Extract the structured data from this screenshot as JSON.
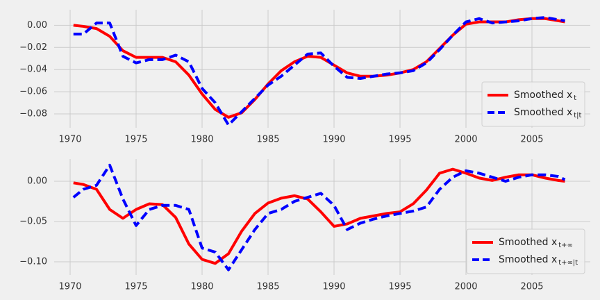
{
  "chart_data": [
    {
      "type": "line",
      "grid": true,
      "legend": "lower right",
      "x": [
        1970.25,
        1971,
        1972,
        1973,
        1974,
        1975,
        1976,
        1977,
        1978,
        1979,
        1980,
        1981,
        1982,
        1983,
        1984,
        1985,
        1986,
        1987,
        1988,
        1989,
        1990,
        1991,
        1992,
        1993,
        1994,
        1995,
        1996,
        1997,
        1998,
        1999,
        2000,
        2001,
        2002,
        2003,
        2004,
        2005,
        2006,
        2007,
        2007.5
      ],
      "xlim": [
        1968.79,
        2009.42
      ],
      "xticks": [
        1970,
        1975,
        1980,
        1985,
        1990,
        1995,
        2000,
        2005
      ],
      "ylim": [
        -0.0925,
        0.014
      ],
      "yticks": [
        {
          "value": 0,
          "label": "0.00"
        },
        {
          "value": -0.02,
          "label": "−0.02"
        },
        {
          "value": -0.04,
          "label": "−0.04"
        },
        {
          "value": -0.06,
          "label": "−0.06"
        },
        {
          "value": -0.08,
          "label": "−0.08"
        }
      ],
      "series": [
        {
          "name": "Smoothed x",
          "subscript": "t",
          "color": "#ff0000",
          "linestyle": "solid",
          "values": [
            0.0,
            -0.001,
            -0.003,
            -0.01,
            -0.023,
            -0.029,
            -0.029,
            -0.029,
            -0.033,
            -0.045,
            -0.062,
            -0.076,
            -0.083,
            -0.079,
            -0.067,
            -0.053,
            -0.041,
            -0.033,
            -0.028,
            -0.029,
            -0.036,
            -0.043,
            -0.046,
            -0.046,
            -0.045,
            -0.043,
            -0.04,
            -0.033,
            -0.021,
            -0.009,
            0.001,
            0.003,
            0.003,
            0.003,
            0.005,
            0.006,
            0.006,
            0.004,
            0.003
          ]
        },
        {
          "name": "Smoothed x",
          "subscript": "t|t",
          "color": "#0000ff",
          "linestyle": "dashed",
          "values": [
            -0.008,
            -0.008,
            0.002,
            0.002,
            -0.028,
            -0.034,
            -0.031,
            -0.031,
            -0.027,
            -0.033,
            -0.057,
            -0.07,
            -0.09,
            -0.078,
            -0.066,
            -0.054,
            -0.046,
            -0.036,
            -0.026,
            -0.025,
            -0.037,
            -0.047,
            -0.048,
            -0.046,
            -0.044,
            -0.043,
            -0.041,
            -0.034,
            -0.022,
            -0.009,
            0.003,
            0.006,
            0.002,
            0.003,
            0.004,
            0.006,
            0.007,
            0.005,
            0.004
          ]
        }
      ]
    },
    {
      "type": "line",
      "grid": true,
      "legend": "lower right",
      "x": [
        1970.25,
        1971,
        1972,
        1973,
        1974,
        1975,
        1976,
        1977,
        1978,
        1979,
        1980,
        1981,
        1982,
        1983,
        1984,
        1985,
        1986,
        1987,
        1988,
        1989,
        1990,
        1991,
        1992,
        1993,
        1994,
        1995,
        1996,
        1997,
        1998,
        1999,
        2000,
        2001,
        2002,
        2003,
        2004,
        2005,
        2006,
        2007,
        2007.5
      ],
      "xlim": [
        1968.79,
        2009.42
      ],
      "xticks": [
        1970,
        1975,
        1980,
        1985,
        1990,
        1995,
        2000,
        2005
      ],
      "ylim": [
        -0.1164,
        0.0276
      ],
      "yticks": [
        {
          "value": 0,
          "label": "0.00"
        },
        {
          "value": -0.05,
          "label": "−0.05"
        },
        {
          "value": -0.1,
          "label": "−0.10"
        }
      ],
      "series": [
        {
          "name": "Smoothed x",
          "subscript": "t+∞",
          "color": "#ff0000",
          "linestyle": "solid",
          "values": [
            -0.002,
            -0.004,
            -0.01,
            -0.035,
            -0.046,
            -0.035,
            -0.028,
            -0.029,
            -0.045,
            -0.078,
            -0.097,
            -0.102,
            -0.09,
            -0.062,
            -0.04,
            -0.027,
            -0.021,
            -0.018,
            -0.022,
            -0.038,
            -0.056,
            -0.053,
            -0.046,
            -0.043,
            -0.04,
            -0.038,
            -0.028,
            -0.011,
            0.01,
            0.015,
            0.01,
            0.004,
            0.001,
            0.005,
            0.008,
            0.008,
            0.004,
            0.001,
            0.0
          ]
        },
        {
          "name": "Smoothed x",
          "subscript": "t+∞|t",
          "color": "#0000ff",
          "linestyle": "dashed",
          "values": [
            -0.02,
            -0.01,
            -0.005,
            0.02,
            -0.022,
            -0.055,
            -0.035,
            -0.03,
            -0.03,
            -0.035,
            -0.083,
            -0.088,
            -0.11,
            -0.085,
            -0.06,
            -0.04,
            -0.035,
            -0.025,
            -0.02,
            -0.015,
            -0.03,
            -0.06,
            -0.052,
            -0.047,
            -0.043,
            -0.04,
            -0.037,
            -0.032,
            -0.01,
            0.005,
            0.013,
            0.01,
            0.005,
            0.0,
            0.005,
            0.008,
            0.008,
            0.006,
            0.002
          ]
        }
      ]
    }
  ]
}
